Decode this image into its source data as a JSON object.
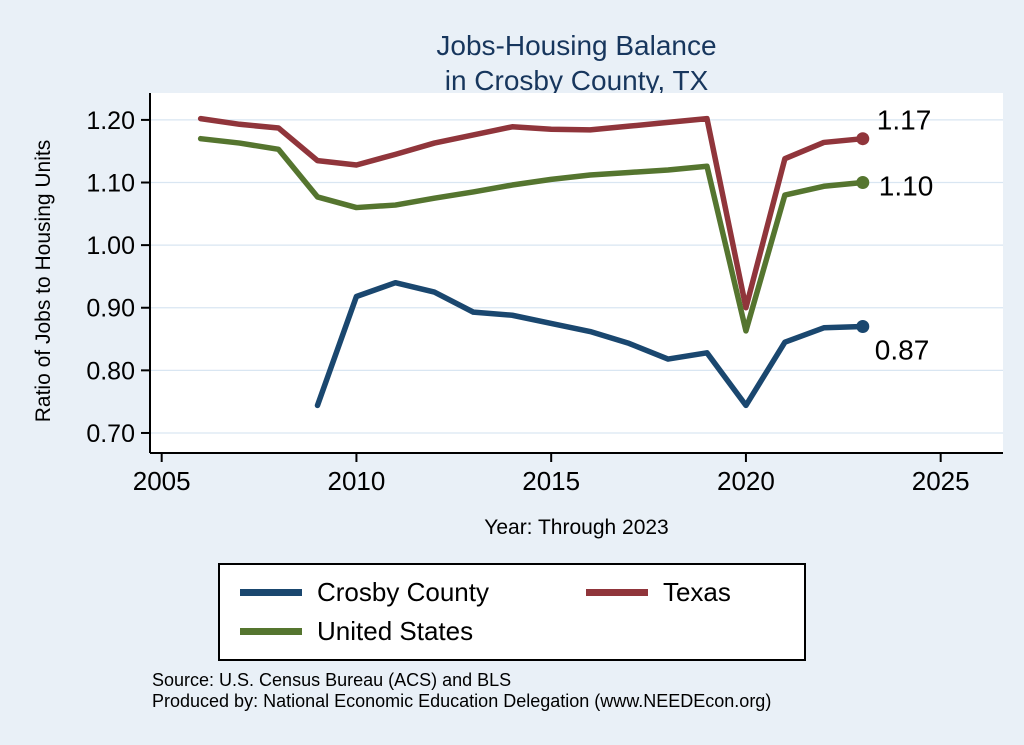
{
  "page": {
    "background": "#e9f0f7",
    "title_color": "#17365d",
    "plot_background": "#ffffff",
    "gridline_color": "#d9e6f2",
    "axis_color": "#000000"
  },
  "chart_data": {
    "type": "line",
    "title_line1": "Jobs-Housing Balance",
    "title_line2": "in Crosby County, TX",
    "ylabel": "Ratio of Jobs to Housing Units",
    "xlabel": "Year: Through 2023",
    "grid": true,
    "legend_position": "bottom",
    "x_ticks": [
      2005,
      2010,
      2015,
      2020,
      2025
    ],
    "y_ticks": [
      0.7,
      0.8,
      0.9,
      1.0,
      1.1,
      1.2
    ],
    "xlim": [
      2004.7,
      2026.6
    ],
    "ylim": [
      0.668,
      1.227
    ],
    "series": [
      {
        "name": "Crosby County",
        "color": "#1a476f",
        "end_label": "0.87",
        "x": [
          2009,
          2010,
          2011,
          2012,
          2013,
          2014,
          2015,
          2016,
          2017,
          2018,
          2019,
          2020,
          2021,
          2022,
          2023
        ],
        "values": [
          0.744,
          0.918,
          0.94,
          0.925,
          0.893,
          0.888,
          0.875,
          0.862,
          0.843,
          0.818,
          0.828,
          0.744,
          0.845,
          0.868,
          0.87
        ]
      },
      {
        "name": "Texas",
        "color": "#90353b",
        "end_label": "1.17",
        "x": [
          2006,
          2007,
          2008,
          2009,
          2010,
          2011,
          2012,
          2013,
          2014,
          2015,
          2016,
          2017,
          2018,
          2019,
          2020,
          2021,
          2022,
          2023
        ],
        "values": [
          1.202,
          1.193,
          1.187,
          1.135,
          1.128,
          1.145,
          1.163,
          1.176,
          1.189,
          1.185,
          1.184,
          1.19,
          1.196,
          1.202,
          0.9,
          1.138,
          1.164,
          1.17
        ]
      },
      {
        "name": "United States",
        "color": "#55752f",
        "end_label": "1.10",
        "x": [
          2006,
          2007,
          2008,
          2009,
          2010,
          2011,
          2012,
          2013,
          2014,
          2015,
          2016,
          2017,
          2018,
          2019,
          2020,
          2021,
          2022,
          2023
        ],
        "values": [
          1.17,
          1.163,
          1.153,
          1.077,
          1.06,
          1.064,
          1.075,
          1.085,
          1.096,
          1.105,
          1.112,
          1.116,
          1.12,
          1.126,
          0.863,
          1.08,
          1.094,
          1.1
        ]
      }
    ]
  },
  "footer": {
    "source": "Source: U.S. Census Bureau (ACS) and BLS",
    "produced_by": "Produced by: National Economic Education Delegation (www.NEEDEcon.org)"
  }
}
